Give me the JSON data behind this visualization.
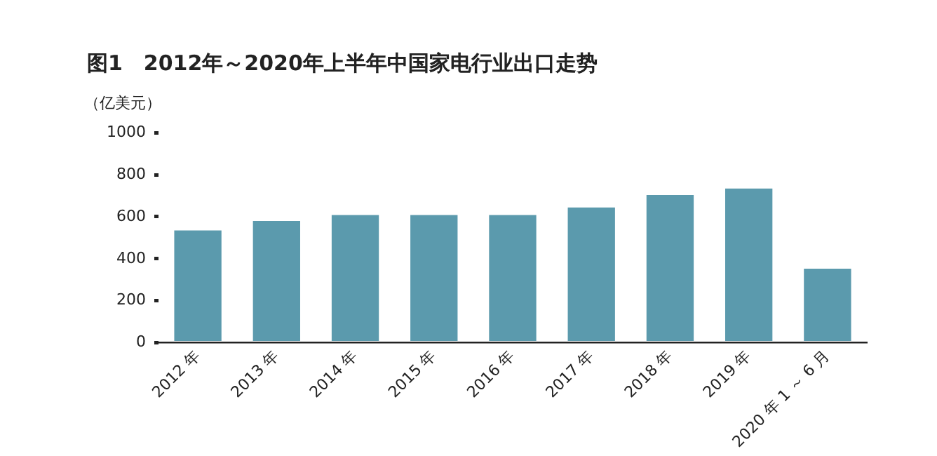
{
  "chart_data": {
    "type": "bar",
    "title": "图1　2012年～2020年上半年中国家电行业出口走势",
    "ylabel": "（亿美元）",
    "categories": [
      "2012 年",
      "2013 年",
      "2014 年",
      "2015 年",
      "2016 年",
      "2017 年",
      "2018 年",
      "2019 年",
      "2020 年 1 ～ 6 月"
    ],
    "values": [
      535,
      580,
      608,
      608,
      608,
      644,
      703,
      734,
      353
    ],
    "color": "#5b9aad",
    "ylim": [
      0,
      1000
    ],
    "yticks": [
      0,
      200,
      400,
      600,
      800,
      1000
    ],
    "grid": false,
    "legend": false
  }
}
